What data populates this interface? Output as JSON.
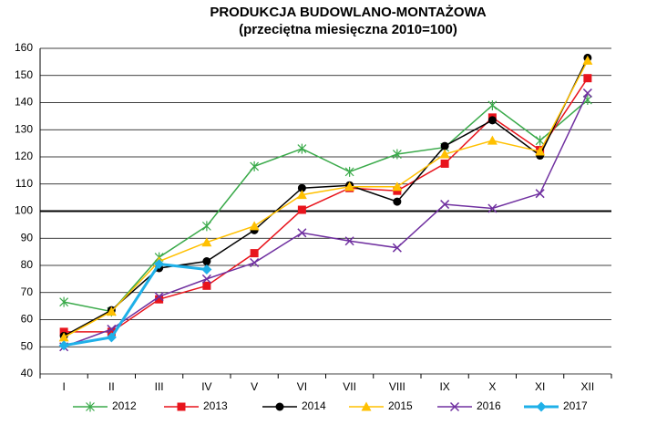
{
  "chart_data": {
    "type": "line",
    "title": "PRODUKCJA BUDOWLANO-MONTAŻOWA",
    "subtitle": "(przeciętna miesięczna 2010=100)",
    "categories": [
      "I",
      "II",
      "III",
      "IV",
      "V",
      "VI",
      "VII",
      "VIII",
      "IX",
      "X",
      "XI",
      "XII"
    ],
    "ylim": [
      40,
      160
    ],
    "yticks": [
      40,
      50,
      60,
      70,
      80,
      90,
      100,
      110,
      120,
      130,
      140,
      150,
      160
    ],
    "grid": true,
    "reference_line": 100,
    "legend": "bottom",
    "series": [
      {
        "name": "2012",
        "color": "#3aaa4a",
        "marker": "asterisk",
        "values": [
          66.5,
          63,
          83,
          94.5,
          116.5,
          123,
          114.5,
          121,
          123.5,
          139,
          126,
          141
        ]
      },
      {
        "name": "2013",
        "color": "#e8141c",
        "marker": "square",
        "values": [
          55.5,
          55.5,
          67.5,
          72.5,
          84.5,
          100.5,
          108.5,
          107.5,
          117.5,
          134.5,
          122.5,
          149
        ]
      },
      {
        "name": "2014",
        "color": "#000000",
        "marker": "circle",
        "values": [
          54,
          63.5,
          79,
          81.5,
          93,
          108.5,
          109.5,
          103.5,
          124,
          133.5,
          120.5,
          156.5
        ]
      },
      {
        "name": "2015",
        "color": "#ffc000",
        "marker": "triangle",
        "values": [
          53.5,
          63,
          81.5,
          88.5,
          94.5,
          106,
          109,
          109,
          121,
          126,
          122,
          155.5
        ]
      },
      {
        "name": "2016",
        "color": "#7030a0",
        "marker": "x",
        "values": [
          50,
          56.5,
          68.5,
          75,
          81,
          92,
          89,
          86.5,
          102.5,
          101,
          106.5,
          143.5
        ]
      },
      {
        "name": "2017",
        "color": "#1fb0e8",
        "marker": "diamond",
        "width": 3,
        "values": [
          50.5,
          53.5,
          80.5,
          78.5,
          null,
          null,
          null,
          null,
          null,
          null,
          null,
          null
        ]
      }
    ]
  }
}
